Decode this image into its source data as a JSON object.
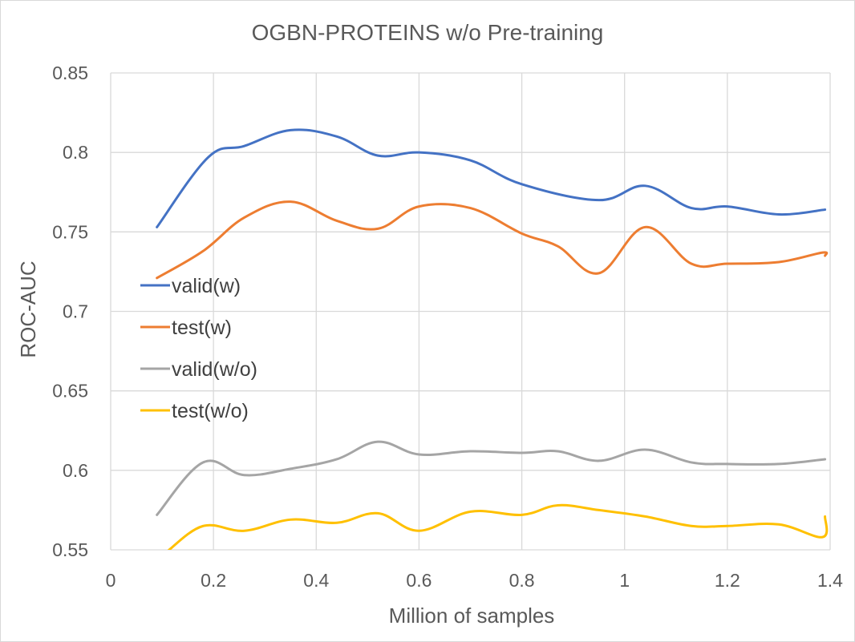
{
  "chart_data": {
    "type": "line",
    "title": "OGBN-PROTEINS w/o Pre-training",
    "xlabel": "Million of samples",
    "ylabel": "ROC-AUC",
    "xlim": [
      0,
      1.4
    ],
    "ylim": [
      0.55,
      0.85
    ],
    "xticks": [
      0,
      0.2,
      0.4,
      0.6,
      0.8,
      1,
      1.2,
      1.4
    ],
    "xtick_labels": [
      "0",
      "0.2",
      "0.4",
      "0.6",
      "0.8",
      "1",
      "1.2",
      "1.4"
    ],
    "yticks": [
      0.55,
      0.6,
      0.65,
      0.7,
      0.75,
      0.8,
      0.85
    ],
    "ytick_labels": [
      "0.55",
      "0.6",
      "0.65",
      "0.7",
      "0.75",
      "0.8",
      "0.85"
    ],
    "grid": true,
    "legend_position": "left-center",
    "series": [
      {
        "name": "valid(w)",
        "color": "#4472C4",
        "x": [
          0.09,
          0.19,
          0.26,
          0.35,
          0.44,
          0.52,
          0.6,
          0.7,
          0.8,
          0.95,
          1.04,
          1.13,
          1.2,
          1.3,
          1.39
        ],
        "y": [
          0.753,
          0.797,
          0.804,
          0.814,
          0.81,
          0.798,
          0.8,
          0.795,
          0.78,
          0.77,
          0.779,
          0.765,
          0.766,
          0.761,
          0.764
        ]
      },
      {
        "name": "test(w)",
        "color": "#ED7D31",
        "x": [
          0.09,
          0.18,
          0.26,
          0.35,
          0.44,
          0.52,
          0.6,
          0.7,
          0.8,
          0.87,
          0.95,
          1.04,
          1.13,
          1.2,
          1.3,
          1.385,
          1.39
        ],
        "y": [
          0.721,
          0.738,
          0.759,
          0.769,
          0.757,
          0.752,
          0.766,
          0.765,
          0.749,
          0.741,
          0.724,
          0.753,
          0.73,
          0.73,
          0.731,
          0.737,
          0.735
        ]
      },
      {
        "name": "valid(w/o)",
        "color": "#A5A5A5",
        "x": [
          0.09,
          0.18,
          0.26,
          0.35,
          0.44,
          0.52,
          0.6,
          0.7,
          0.8,
          0.87,
          0.95,
          1.04,
          1.13,
          1.2,
          1.3,
          1.39
        ],
        "y": [
          0.572,
          0.605,
          0.597,
          0.601,
          0.607,
          0.618,
          0.61,
          0.612,
          0.611,
          0.612,
          0.606,
          0.613,
          0.605,
          0.604,
          0.604,
          0.607
        ]
      },
      {
        "name": "test(w/o)",
        "color": "#FFC000",
        "x": [
          0.11,
          0.18,
          0.26,
          0.35,
          0.44,
          0.52,
          0.6,
          0.7,
          0.8,
          0.87,
          0.95,
          1.04,
          1.13,
          1.2,
          1.3,
          1.385,
          1.39
        ],
        "y": [
          0.549,
          0.565,
          0.562,
          0.569,
          0.567,
          0.573,
          0.562,
          0.574,
          0.572,
          0.578,
          0.575,
          0.571,
          0.565,
          0.565,
          0.566,
          0.558,
          0.571
        ]
      }
    ]
  }
}
